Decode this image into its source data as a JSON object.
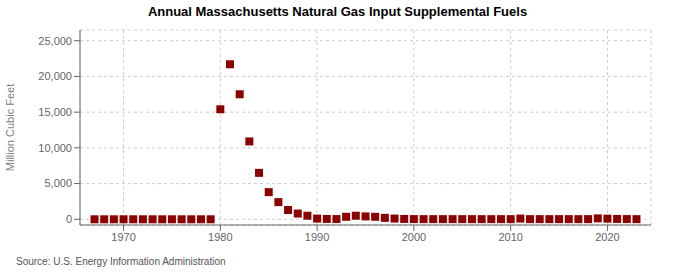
{
  "chart_data": {
    "type": "scatter",
    "title": "Annual Massachusetts Natural Gas Input Supplemental Fuels",
    "ylabel": "Million Cubic Feet",
    "annotations": [
      "Source: U.S. Energy Information Administration"
    ],
    "color": "#8B0000",
    "marker": "square",
    "grid": true,
    "xlim": [
      1965.5,
      2024.5
    ],
    "xticks": [
      1970,
      1980,
      1990,
      2000,
      2010,
      2020
    ],
    "ylim": [
      -800,
      26500
    ],
    "yticks": [
      0,
      {
        "value": 5000,
        "label": "5,000"
      },
      {
        "value": 10000,
        "label": "10,000"
      },
      {
        "value": 15000,
        "label": "15,000"
      },
      {
        "value": 20000,
        "label": "20,000"
      },
      {
        "value": 25000,
        "label": "25,000"
      }
    ],
    "x": [
      1967,
      1968,
      1969,
      1970,
      1971,
      1972,
      1973,
      1974,
      1975,
      1976,
      1977,
      1978,
      1979,
      1980,
      1981,
      1982,
      1983,
      1984,
      1985,
      1986,
      1987,
      1988,
      1989,
      1990,
      1991,
      1992,
      1993,
      1994,
      1995,
      1996,
      1997,
      1998,
      1999,
      2000,
      2001,
      2002,
      2003,
      2004,
      2005,
      2006,
      2007,
      2008,
      2009,
      2010,
      2011,
      2012,
      2013,
      2014,
      2015,
      2016,
      2017,
      2018,
      2019,
      2020,
      2021,
      2022,
      2023
    ],
    "values": [
      0,
      0,
      0,
      0,
      0,
      0,
      0,
      0,
      0,
      0,
      0,
      0,
      0,
      15400,
      21700,
      17500,
      10900,
      6500,
      3800,
      2400,
      1300,
      800,
      500,
      100,
      50,
      30,
      350,
      500,
      400,
      350,
      200,
      100,
      50,
      30,
      20,
      20,
      20,
      20,
      20,
      20,
      20,
      20,
      20,
      20,
      100,
      20,
      20,
      20,
      20,
      20,
      20,
      20,
      130,
      90,
      50,
      30,
      20
    ]
  }
}
